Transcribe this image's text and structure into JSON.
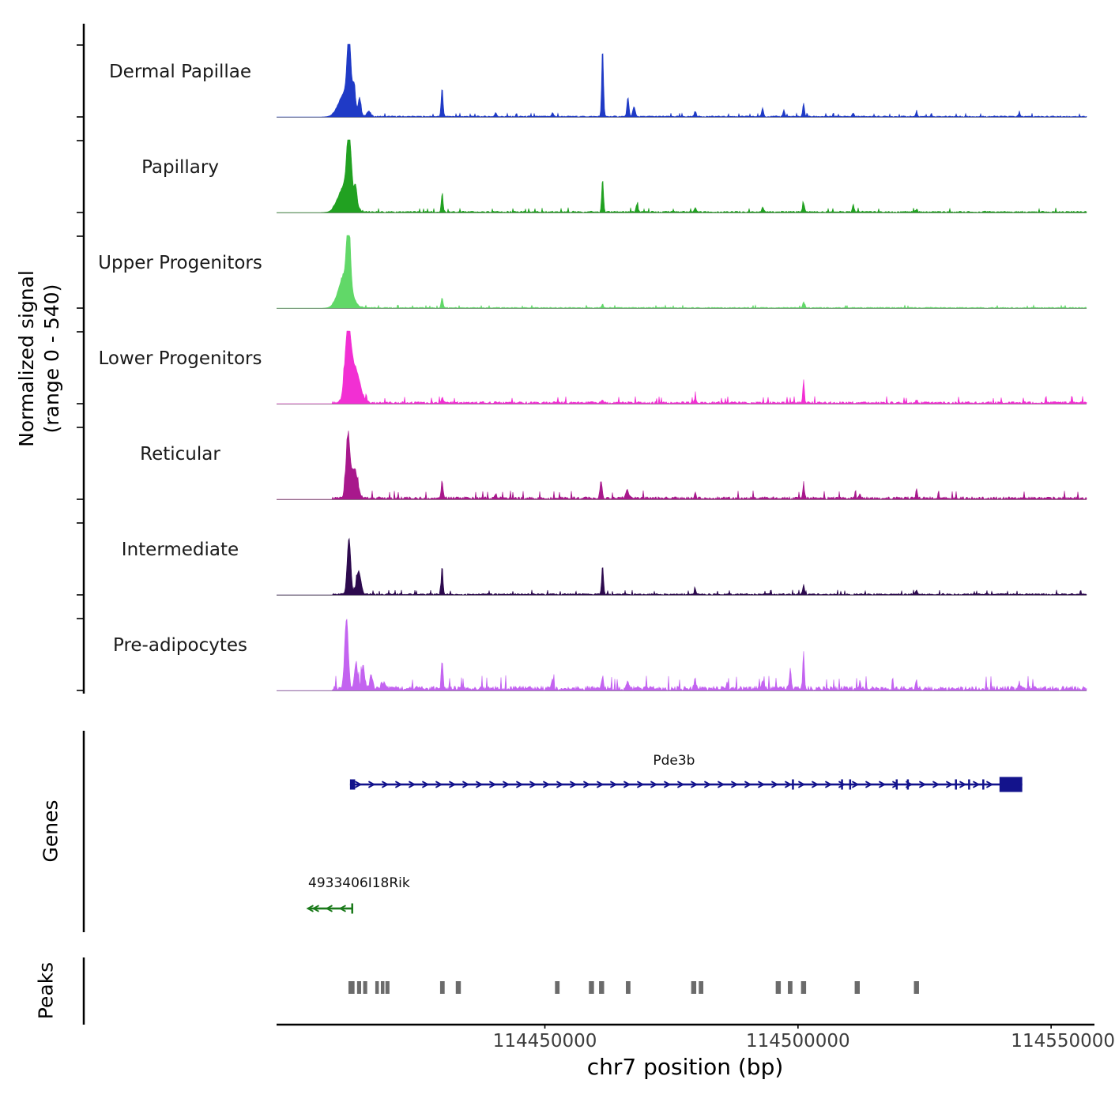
{
  "figure": {
    "y_axis_label_line1": "Normalized signal",
    "y_axis_label_line2": "(range 0 - 540)",
    "genes_section_label": "Genes",
    "peaks_section_label": "Peaks",
    "x_axis_title": "chr7 position (bp)",
    "colors": {
      "baseline": "#8a8a8a",
      "axis": "#000000",
      "peak_call": "#6b6b6b",
      "tick_text": "#3d3d3d"
    }
  },
  "chart_data": {
    "type": "area",
    "title": "",
    "xlabel": "chr7 position (bp)",
    "ylabel": "Normalized signal (range 0 - 540)",
    "signal_range": [
      0,
      540
    ],
    "chromosome": "chr7",
    "x_domain_bp": [
      114397000,
      114557000
    ],
    "x_ticks": [
      {
        "bp": 114450000,
        "label": "114450000"
      },
      {
        "bp": 114500000,
        "label": "114500000"
      },
      {
        "bp": 114550000,
        "label": "114550000"
      }
    ],
    "tracks": [
      {
        "name": "Dermal Papillae",
        "color": "#1f3ac6",
        "noise": 0.015,
        "peaks": [
          [
            114411300,
            0.9,
            350
          ],
          [
            114410700,
            0.35,
            1300
          ],
          [
            114412300,
            0.3,
            250
          ],
          [
            114413400,
            0.22,
            250
          ],
          [
            114415200,
            0.07,
            400
          ],
          [
            114429700,
            0.4,
            180
          ],
          [
            114440300,
            0.05,
            200
          ],
          [
            114451500,
            0.05,
            200
          ],
          [
            114461400,
            0.92,
            180
          ],
          [
            114466400,
            0.26,
            200
          ],
          [
            114467600,
            0.13,
            250
          ],
          [
            114479700,
            0.07,
            200
          ],
          [
            114493000,
            0.12,
            180
          ],
          [
            114497200,
            0.09,
            180
          ],
          [
            114501100,
            0.18,
            180
          ],
          [
            114510900,
            0.05,
            180
          ],
          [
            114523400,
            0.05,
            180
          ],
          [
            114543700,
            0.04,
            180
          ]
        ]
      },
      {
        "name": "Papillary",
        "color": "#21a121",
        "noise": 0.02,
        "peaks": [
          [
            114411300,
            0.88,
            400
          ],
          [
            114410600,
            0.38,
            1300
          ],
          [
            114412600,
            0.25,
            300
          ],
          [
            114429700,
            0.24,
            180
          ],
          [
            114461400,
            0.45,
            180
          ],
          [
            114468200,
            0.1,
            200
          ],
          [
            114479700,
            0.06,
            180
          ],
          [
            114493000,
            0.07,
            180
          ],
          [
            114501100,
            0.12,
            180
          ],
          [
            114510900,
            0.1,
            180
          ],
          [
            114523400,
            0.04,
            180
          ]
        ]
      },
      {
        "name": "Upper Progenitors",
        "color": "#61d868",
        "noise": 0.012,
        "peaks": [
          [
            114411200,
            0.97,
            350
          ],
          [
            114410500,
            0.45,
            1200
          ],
          [
            114429700,
            0.14,
            180
          ],
          [
            114461400,
            0.05,
            150
          ],
          [
            114501100,
            0.08,
            180
          ]
        ]
      },
      {
        "name": "Lower Progenitors",
        "color": "#f22fd3",
        "noise": 0.03,
        "peaks": [
          [
            114411100,
            0.97,
            600
          ],
          [
            114412600,
            0.45,
            900
          ],
          [
            114429700,
            0.07,
            180
          ],
          [
            114461400,
            0.05,
            180
          ],
          [
            114479700,
            0.07,
            180
          ],
          [
            114501100,
            0.32,
            150
          ],
          [
            114523400,
            0.04,
            180
          ]
        ]
      },
      {
        "name": "Reticular",
        "color": "#a8188c",
        "noise": 0.035,
        "peaks": [
          [
            114411100,
            0.82,
            400
          ],
          [
            114412400,
            0.4,
            600
          ],
          [
            114429700,
            0.24,
            180
          ],
          [
            114440300,
            0.06,
            200
          ],
          [
            114461100,
            0.24,
            220
          ],
          [
            114466200,
            0.11,
            300
          ],
          [
            114479700,
            0.07,
            180
          ],
          [
            114501100,
            0.15,
            180
          ],
          [
            114512200,
            0.05,
            180
          ],
          [
            114523400,
            0.14,
            150
          ]
        ]
      },
      {
        "name": "Intermediate",
        "color": "#2d0a4e",
        "noise": 0.02,
        "peaks": [
          [
            114411300,
            0.78,
            350
          ],
          [
            114413200,
            0.32,
            450
          ],
          [
            114429700,
            0.38,
            170
          ],
          [
            114461400,
            0.4,
            180
          ],
          [
            114479700,
            0.07,
            180
          ],
          [
            114501100,
            0.13,
            180
          ],
          [
            114523400,
            0.05,
            180
          ]
        ]
      },
      {
        "name": "Pre-adipocytes",
        "color": "#c363f0",
        "noise": 0.06,
        "peaks": [
          [
            114410800,
            0.97,
            350
          ],
          [
            114412700,
            0.38,
            300
          ],
          [
            114414100,
            0.32,
            300
          ],
          [
            114415700,
            0.18,
            300
          ],
          [
            114418000,
            0.08,
            400
          ],
          [
            114429700,
            0.38,
            180
          ],
          [
            114451500,
            0.1,
            220
          ],
          [
            114461400,
            0.16,
            180
          ],
          [
            114466400,
            0.1,
            220
          ],
          [
            114479700,
            0.13,
            180
          ],
          [
            114486000,
            0.08,
            180
          ],
          [
            114493000,
            0.1,
            180
          ],
          [
            114498500,
            0.26,
            180
          ],
          [
            114501100,
            0.52,
            160
          ],
          [
            114512200,
            0.08,
            180
          ],
          [
            114523400,
            0.1,
            180
          ],
          [
            114543700,
            0.1,
            180
          ]
        ]
      }
    ],
    "genes": [
      {
        "name": "Pde3b",
        "strand": "+",
        "start_bp": 114411500,
        "end_bp": 114544300,
        "color": "#13138c",
        "label_bp": 114475500,
        "exons_bp": [
          114499000,
          114508700,
          114510300,
          114519500,
          114521700,
          114531200,
          114533800,
          114536600
        ],
        "tall_exon_bp": [
          114539800,
          114544300
        ]
      },
      {
        "name": "4933406I18Rik",
        "strand": "-",
        "start_bp": 114403244,
        "end_bp": 114412141,
        "color": "#1b7a1b",
        "label_bp": 114403244,
        "exons_bp": [],
        "tall_exon_bp": null
      }
    ],
    "peak_calls_bp": [
      [
        114411200,
        114412400
      ],
      [
        114412900,
        114413700
      ],
      [
        114414100,
        114414900
      ],
      [
        114416500,
        114417200
      ],
      [
        114417600,
        114418200
      ],
      [
        114418500,
        114419300
      ],
      [
        114429300,
        114430200
      ],
      [
        114432400,
        114433400
      ],
      [
        114452000,
        114452900
      ],
      [
        114458700,
        114459700
      ],
      [
        114460700,
        114461700
      ],
      [
        114466000,
        114466900
      ],
      [
        114478900,
        114479900
      ],
      [
        114480400,
        114481300
      ],
      [
        114495600,
        114496600
      ],
      [
        114498000,
        114498900
      ],
      [
        114500600,
        114501600
      ],
      [
        114511200,
        114512200
      ],
      [
        114522900,
        114523900
      ]
    ]
  }
}
